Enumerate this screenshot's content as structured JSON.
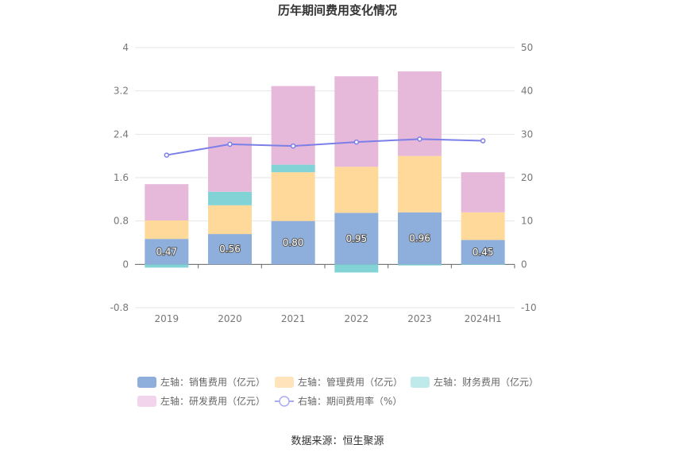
{
  "chart_data": {
    "type": "bar",
    "title": "历年期间费用变化情况",
    "categories": [
      "2019",
      "2020",
      "2021",
      "2022",
      "2023",
      "2024H1"
    ],
    "left_axis": {
      "ylim": [
        -0.8,
        4
      ],
      "ticks": [
        "4",
        "3.2",
        "2.4",
        "1.6",
        "0.8",
        "0",
        "-0.8"
      ]
    },
    "right_axis": {
      "ylim": [
        -10,
        50
      ],
      "ticks": [
        "50",
        "40",
        "30",
        "20",
        "10",
        "0",
        "-10"
      ]
    },
    "stacked": true,
    "series": [
      {
        "name": "左轴：销售费用（亿元）",
        "axis": "left",
        "type": "bar",
        "color": "#8eaedb",
        "values": [
          0.47,
          0.56,
          0.8,
          0.95,
          0.96,
          0.45
        ],
        "labels": [
          "0.47",
          "0.56",
          "0.80",
          "0.95",
          "0.96",
          "0.45"
        ]
      },
      {
        "name": "左轴：管理费用（亿元）",
        "axis": "left",
        "type": "bar",
        "color": "#ffd99a",
        "values": [
          0.34,
          0.53,
          0.9,
          0.85,
          1.04,
          0.51
        ]
      },
      {
        "name": "左轴：财务费用（亿元）",
        "axis": "left",
        "type": "bar",
        "color": "#81d3d6",
        "values": [
          -0.06,
          0.25,
          0.14,
          -0.15,
          -0.02,
          -0.01
        ]
      },
      {
        "name": "左轴：研发费用（亿元）",
        "axis": "left",
        "type": "bar",
        "color": "#e6b8da",
        "values": [
          0.67,
          1.01,
          1.45,
          1.67,
          1.56,
          0.74
        ]
      },
      {
        "name": "右轴：期间费用率（%）",
        "axis": "right",
        "type": "line",
        "color": "#7b7fe8",
        "values": [
          25.2,
          27.7,
          27.3,
          28.2,
          28.9,
          28.5
        ]
      }
    ],
    "legend_position": "bottom",
    "grid": true,
    "source": "数据来源：恒生聚源"
  }
}
